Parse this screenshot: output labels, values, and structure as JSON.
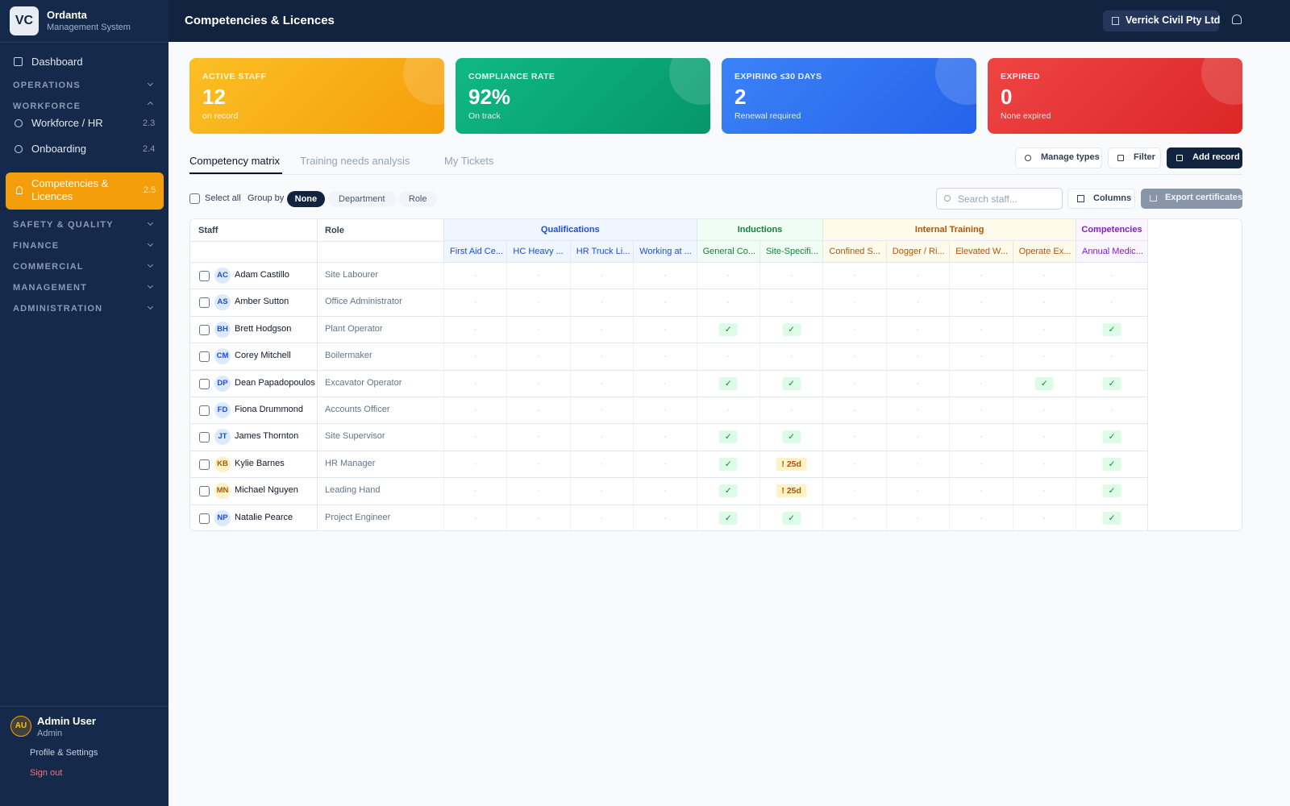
{
  "sidebar": {
    "logo": "VC",
    "app_name": "Ordanta",
    "app_sub": "Management System",
    "dashboard": "Dashboard",
    "sections": [
      {
        "label": "OPERATIONS",
        "open": false
      },
      {
        "label": "WORKFORCE",
        "open": true,
        "items": [
          {
            "label": "Workforce / HR",
            "code": "2.3"
          },
          {
            "label": "Onboarding",
            "code": "2.4"
          },
          {
            "label": "Competencies & Licences",
            "code": "2.5",
            "active": true
          }
        ]
      },
      {
        "label": "SAFETY & QUALITY",
        "open": false
      },
      {
        "label": "FINANCE",
        "open": false
      },
      {
        "label": "COMMERCIAL",
        "open": false
      },
      {
        "label": "MANAGEMENT",
        "open": false
      },
      {
        "label": "ADMINISTRATION",
        "open": false
      }
    ],
    "user": {
      "initials": "AU",
      "name": "Admin User",
      "role": "Admin",
      "profile": "Profile & Settings",
      "sign_out": "Sign out"
    }
  },
  "header": {
    "title": "Competencies & Licences",
    "org": "Verrick Civil Pty Ltd"
  },
  "stats": [
    {
      "label": "ACTIVE STAFF",
      "value": "12",
      "sub": "on record",
      "from": "#fbbf24",
      "to": "#f59e0b"
    },
    {
      "label": "COMPLIANCE RATE",
      "value": "92%",
      "sub": "On track",
      "from": "#10b981",
      "to": "#059669"
    },
    {
      "label": "EXPIRING ≤30 DAYS",
      "value": "2",
      "sub": "Renewal required",
      "from": "#3b82f6",
      "to": "#2563eb"
    },
    {
      "label": "EXPIRED",
      "value": "0",
      "sub": "None expired",
      "from": "#ef4444",
      "to": "#dc2626"
    }
  ],
  "tabs": {
    "items": [
      "Competency matrix",
      "Training needs analysis",
      "My Tickets"
    ],
    "active": 0
  },
  "actions": [
    "Manage types",
    "Filter",
    "Add record"
  ],
  "toolbar": {
    "select_all": "Select all",
    "group_by": "Group by",
    "options": [
      "None",
      "Department",
      "Role"
    ],
    "active": 0,
    "search": "Search staff...",
    "columns": "Columns",
    "export": "Export certificates"
  },
  "table": {
    "headers": [
      "Staff",
      "Role"
    ],
    "groups": [
      {
        "name": "Qualifications",
        "color": "#1d4ed8",
        "bg": "#eff6ff",
        "columns": [
          "First Aid Ce...",
          "HC Heavy ...",
          "HR Truck Li...",
          "Working at ..."
        ]
      },
      {
        "name": "Inductions",
        "color": "#15803d",
        "bg": "#f0fdf4",
        "columns": [
          "General Co...",
          "Site-Specifi..."
        ]
      },
      {
        "name": "Internal Training",
        "color": "#b45309",
        "bg": "#fffbeb",
        "columns": [
          "Confined S...",
          "Dogger / Ri...",
          "Elevated W...",
          "Operate Ex..."
        ]
      },
      {
        "name": "Competencies",
        "color": "#7e22ce",
        "bg": "#faf5ff",
        "columns": [
          "Annual Medic..."
        ]
      }
    ],
    "rows": [
      {
        "initials": "AC",
        "name": "Adam Castillo",
        "role": "Site Labourer",
        "tone": "blue",
        "cells": [
          "·",
          "·",
          "·",
          "·",
          "·",
          "·",
          "·",
          "·",
          "·",
          "·",
          "·"
        ]
      },
      {
        "initials": "AS",
        "name": "Amber Sutton",
        "role": "Office Administrator",
        "tone": "blue",
        "cells": [
          "·",
          "·",
          "·",
          "·",
          "·",
          "·",
          "·",
          "·",
          "·",
          "·",
          "·"
        ]
      },
      {
        "initials": "BH",
        "name": "Brett Hodgson",
        "role": "Plant Operator",
        "tone": "blue",
        "cells": [
          "·",
          "·",
          "·",
          "·",
          "✓",
          "✓",
          "·",
          "·",
          "·",
          "·",
          "✓"
        ]
      },
      {
        "initials": "CM",
        "name": "Corey Mitchell",
        "role": "Boilermaker",
        "tone": "blue",
        "cells": [
          "·",
          "·",
          "·",
          "·",
          "·",
          "·",
          "·",
          "·",
          "·",
          "·",
          "·"
        ]
      },
      {
        "initials": "DP",
        "name": "Dean Papadopoulos",
        "role": "Excavator Operator",
        "tone": "blue",
        "cells": [
          "·",
          "·",
          "·",
          "·",
          "✓",
          "✓",
          "·",
          "·",
          "·",
          "✓",
          "✓"
        ]
      },
      {
        "initials": "FD",
        "name": "Fiona Drummond",
        "role": "Accounts Officer",
        "tone": "blue",
        "cells": [
          "·",
          "·",
          "·",
          "·",
          "·",
          "·",
          "·",
          "·",
          "·",
          "·",
          "·"
        ]
      },
      {
        "initials": "JT",
        "name": "James Thornton",
        "role": "Site Supervisor",
        "tone": "blue",
        "cells": [
          "·",
          "·",
          "·",
          "·",
          "✓",
          "✓",
          "·",
          "·",
          "·",
          "·",
          "✓"
        ]
      },
      {
        "initials": "KB",
        "name": "Kylie Barnes",
        "role": "HR Manager",
        "tone": "amber",
        "cells": [
          "·",
          "·",
          "·",
          "·",
          "✓",
          "! 25d",
          "·",
          "·",
          "·",
          "·",
          "✓"
        ]
      },
      {
        "initials": "MN",
        "name": "Michael Nguyen",
        "role": "Leading Hand",
        "tone": "amber",
        "cells": [
          "·",
          "·",
          "·",
          "·",
          "✓",
          "! 25d",
          "·",
          "·",
          "·",
          "·",
          "✓"
        ]
      },
      {
        "initials": "NP",
        "name": "Natalie Pearce",
        "role": "Project Engineer",
        "tone": "blue",
        "cells": [
          "·",
          "·",
          "·",
          "·",
          "✓",
          "✓",
          "·",
          "·",
          "·",
          "·",
          "✓"
        ]
      }
    ]
  }
}
